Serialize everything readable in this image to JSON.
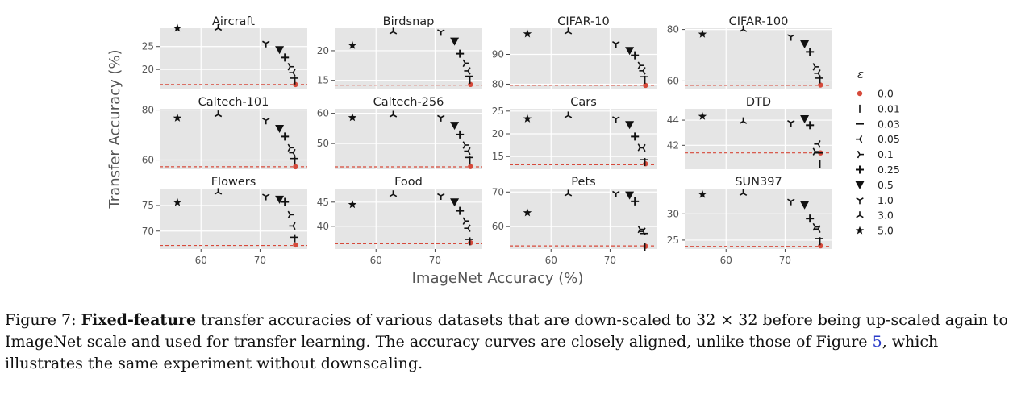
{
  "figure": {
    "xlabel": "ImageNet Accuracy (%)",
    "ylabel": "Transfer Accuracy (%)",
    "legend_title": "ε",
    "legend": [
      {
        "label": "0.0",
        "marker": "dot"
      },
      {
        "label": "0.01",
        "marker": "vline"
      },
      {
        "label": "0.03",
        "marker": "hline"
      },
      {
        "label": "0.05",
        "marker": "tri_left"
      },
      {
        "label": "0.1",
        "marker": "tri_right"
      },
      {
        "label": "0.25",
        "marker": "plus"
      },
      {
        "label": "0.5",
        "marker": "triangle_down"
      },
      {
        "label": "1.0",
        "marker": "tri_down"
      },
      {
        "label": "3.0",
        "marker": "tri_up"
      },
      {
        "label": "5.0",
        "marker": "star"
      }
    ],
    "colors": {
      "panel": "#e5e5e5",
      "marker": "#111111",
      "baseline": "#d64a3b"
    }
  },
  "chart_data": [
    {
      "type": "scatter",
      "title": "Aircraft",
      "xlim": [
        53,
        78
      ],
      "ylim": [
        15.8,
        29.0
      ],
      "yticks": [
        20,
        25
      ],
      "xticks": [],
      "baseline": 16.7,
      "points": [
        [
          76,
          16.7
        ],
        [
          75.9,
          17.6
        ],
        [
          75.8,
          18.1
        ],
        [
          75.6,
          19.3
        ],
        [
          75.1,
          20.6
        ],
        [
          74.2,
          22.6
        ],
        [
          73.3,
          24.3
        ],
        [
          71,
          25.7
        ],
        [
          62.9,
          29.0
        ],
        [
          56,
          29.0
        ]
      ]
    },
    {
      "type": "scatter",
      "title": "Birdsnap",
      "xlim": [
        53,
        78
      ],
      "ylim": [
        13.6,
        23.8
      ],
      "yticks": [
        15,
        20
      ],
      "xticks": [],
      "baseline": 14.2,
      "points": [
        [
          76,
          14.3
        ],
        [
          75.9,
          15.1
        ],
        [
          75.8,
          15.7
        ],
        [
          75.6,
          16.6
        ],
        [
          75.1,
          17.9
        ],
        [
          74.2,
          19.5
        ],
        [
          73.3,
          21.6
        ],
        [
          71,
          23.2
        ],
        [
          62.9,
          23.2
        ],
        [
          56,
          20.9
        ]
      ]
    },
    {
      "type": "scatter",
      "title": "CIFAR-10",
      "xlim": [
        53,
        78
      ],
      "ylim": [
        78.5,
        98.8
      ],
      "yticks": [
        80,
        90
      ],
      "xticks": [],
      "baseline": 79.6,
      "points": [
        [
          76,
          79.6
        ],
        [
          75.9,
          81.5
        ],
        [
          75.8,
          82.5
        ],
        [
          75.6,
          84.5
        ],
        [
          75.1,
          86.3
        ],
        [
          74.2,
          89.7
        ],
        [
          73.3,
          91.3
        ],
        [
          71,
          93.6
        ],
        [
          62.9,
          97.6
        ],
        [
          56,
          96.9
        ]
      ]
    },
    {
      "type": "scatter",
      "title": "CIFAR-100",
      "xlim": [
        53,
        78
      ],
      "ylim": [
        57,
        80.5
      ],
      "yticks": [
        60,
        80
      ],
      "xticks": [],
      "baseline": 58.3,
      "points": [
        [
          76,
          58.4
        ],
        [
          75.9,
          60.6
        ],
        [
          75.8,
          61.1
        ],
        [
          75.6,
          63.0
        ],
        [
          75.1,
          65.5
        ],
        [
          74.2,
          71.3
        ],
        [
          73.3,
          74.4
        ],
        [
          71,
          77.2
        ],
        [
          62.9,
          80.0
        ],
        [
          56,
          78.2
        ]
      ]
    },
    {
      "type": "scatter",
      "title": "Caltech-101",
      "xlim": [
        53,
        78
      ],
      "ylim": [
        56.3,
        80.5
      ],
      "yticks": [
        60,
        80
      ],
      "xticks": [],
      "baseline": 57.3,
      "points": [
        [
          76,
          57.3
        ],
        [
          75.9,
          59.8
        ],
        [
          75.8,
          60.6
        ],
        [
          75.6,
          62.9
        ],
        [
          75.1,
          64.9
        ],
        [
          74.2,
          69.4
        ],
        [
          73.3,
          72.6
        ],
        [
          71,
          75.9
        ],
        [
          62.9,
          78.2
        ],
        [
          56,
          76.8
        ]
      ]
    },
    {
      "type": "scatter",
      "title": "Caltech-256",
      "xlim": [
        53,
        78
      ],
      "ylim": [
        41.5,
        61.5
      ],
      "yticks": [
        50,
        60
      ],
      "xticks": [],
      "baseline": 42.3,
      "points": [
        [
          76,
          42.4
        ],
        [
          75.9,
          44.4
        ],
        [
          75.8,
          45.4
        ],
        [
          75.6,
          47.5
        ],
        [
          75.1,
          49.5
        ],
        [
          74.2,
          53.0
        ],
        [
          73.3,
          56.0
        ],
        [
          71,
          58.6
        ],
        [
          62.9,
          59.5
        ],
        [
          56,
          58.6
        ]
      ]
    },
    {
      "type": "scatter",
      "title": "Cars",
      "xlim": [
        53,
        78
      ],
      "ylim": [
        12.2,
        25.5
      ],
      "yticks": [
        15,
        20,
        25
      ],
      "xticks": [],
      "baseline": 13.2,
      "points": [
        [
          76,
          13.4
        ],
        [
          75.9,
          13.8
        ],
        [
          75.8,
          14.3
        ],
        [
          75.6,
          16.9
        ],
        [
          75.1,
          17.0
        ],
        [
          74.2,
          19.4
        ],
        [
          73.3,
          22.0
        ],
        [
          71,
          23.3
        ],
        [
          62.9,
          24.0
        ],
        [
          56,
          23.3
        ]
      ]
    },
    {
      "type": "scatter",
      "title": "DTD",
      "xlim": [
        53,
        78
      ],
      "ylim": [
        40.1,
        44.9
      ],
      "yticks": [
        42,
        44
      ],
      "xticks": [],
      "baseline": 41.4,
      "points": [
        [
          76,
          41.4
        ],
        [
          75.9,
          40.5
        ],
        [
          75.8,
          41.4
        ],
        [
          75.6,
          42.1
        ],
        [
          75.1,
          41.5
        ],
        [
          74.2,
          43.6
        ],
        [
          73.3,
          44.1
        ],
        [
          71,
          43.8
        ],
        [
          62.9,
          43.9
        ],
        [
          56,
          44.3
        ]
      ]
    },
    {
      "type": "scatter",
      "title": "Flowers",
      "xlim": [
        53,
        78
      ],
      "ylim": [
        66.5,
        78.3
      ],
      "yticks": [
        70,
        75
      ],
      "xticks": [
        60,
        70
      ],
      "baseline": 67.2,
      "points": [
        [
          76,
          67.3
        ],
        [
          75.9,
          68.6
        ],
        [
          75.8,
          68.8
        ],
        [
          75.6,
          71.0
        ],
        [
          75.1,
          73.2
        ],
        [
          74.2,
          75.7
        ],
        [
          73.3,
          76.2
        ],
        [
          71,
          76.8
        ],
        [
          62.9,
          77.6
        ],
        [
          56,
          75.6
        ]
      ]
    },
    {
      "type": "scatter",
      "title": "Food",
      "xlim": [
        53,
        78
      ],
      "ylim": [
        35.3,
        47.8
      ],
      "yticks": [
        40,
        45
      ],
      "xticks": [
        60,
        70
      ],
      "baseline": 36.4,
      "points": [
        [
          76,
          36.6
        ],
        [
          75.9,
          36.9
        ],
        [
          75.8,
          37.3
        ],
        [
          75.6,
          39.6
        ],
        [
          75.1,
          41.1
        ],
        [
          74.2,
          43.2
        ],
        [
          73.3,
          45.0
        ],
        [
          71,
          46.3
        ],
        [
          62.9,
          46.6
        ],
        [
          56,
          44.5
        ]
      ]
    },
    {
      "type": "scatter",
      "title": "Pets",
      "xlim": [
        53,
        78
      ],
      "ylim": [
        53.5,
        71.0
      ],
      "yticks": [
        60,
        70
      ],
      "xticks": [
        60,
        70
      ],
      "baseline": 54.4,
      "points": [
        [
          76,
          54.3
        ],
        [
          75.9,
          54.1
        ],
        [
          75.8,
          58.0
        ],
        [
          75.6,
          58.6
        ],
        [
          75.1,
          59.2
        ],
        [
          74.2,
          67.3
        ],
        [
          73.3,
          69.1
        ],
        [
          71,
          69.6
        ],
        [
          62.9,
          69.5
        ],
        [
          56,
          64.0
        ]
      ]
    },
    {
      "type": "scatter",
      "title": "SUN397",
      "xlim": [
        53,
        78
      ],
      "ylim": [
        23.3,
        34.8
      ],
      "yticks": [
        25,
        30
      ],
      "xticks": [
        60,
        70
      ],
      "baseline": 23.8,
      "points": [
        [
          76,
          23.9
        ],
        [
          75.9,
          24.8
        ],
        [
          75.8,
          25.3
        ],
        [
          75.6,
          27.1
        ],
        [
          75.1,
          27.5
        ],
        [
          74.2,
          29.1
        ],
        [
          73.3,
          31.7
        ],
        [
          71,
          32.4
        ],
        [
          62.9,
          33.9
        ],
        [
          56,
          33.7
        ]
      ]
    }
  ],
  "caption": {
    "label": "Figure 7: ",
    "bold": "Fixed-feature",
    "text1": " transfer accuracies of various datasets that are down-scaled to 32 × 32 before being up-scaled again to ImageNet scale and used for transfer learning. The accuracy curves are closely aligned, unlike those of Figure ",
    "ref": "5",
    "text2": ", which illustrates the same experiment without downscaling."
  }
}
